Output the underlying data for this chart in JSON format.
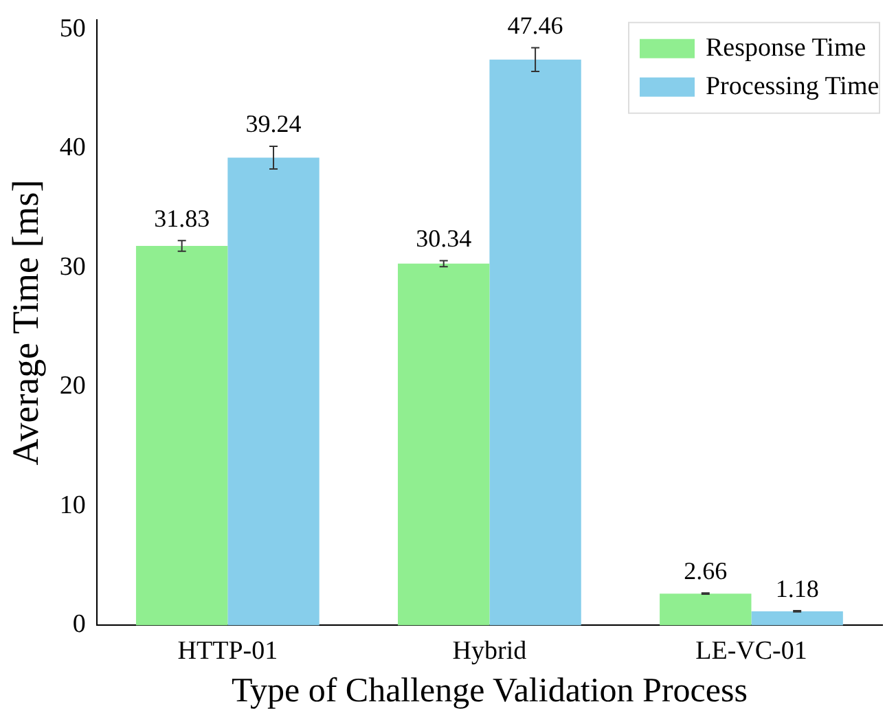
{
  "chart_data": {
    "type": "bar",
    "xlabel": "Type of Challenge Validation Process",
    "ylabel": "Average Time [ms]",
    "categories": [
      "HTTP-01",
      "Hybrid",
      "LE-VC-01"
    ],
    "series": [
      {
        "name": "Response Time",
        "color": "#90ee90",
        "values": [
          31.83,
          30.34,
          2.66
        ],
        "errors": [
          0.45,
          0.25,
          0.05
        ]
      },
      {
        "name": "Processing Time",
        "color": "#87ceeb",
        "values": [
          39.24,
          47.46,
          1.18
        ],
        "errors": [
          0.95,
          1.0,
          0.05
        ]
      }
    ],
    "ylim": [
      0,
      50.8
    ],
    "yticks": [
      0,
      10,
      20,
      30,
      40,
      50
    ],
    "grid": false,
    "legend": "top right",
    "data_labels": true
  }
}
